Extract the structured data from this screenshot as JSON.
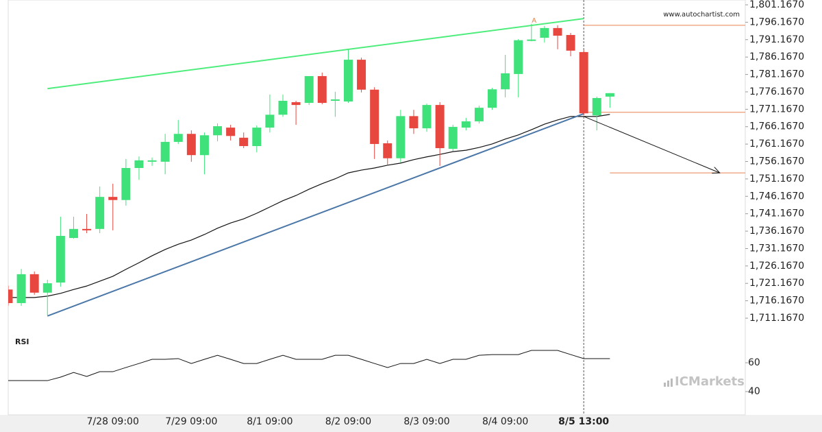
{
  "chart_data": {
    "type": "candlestick",
    "watermark": "www.autochartist.com",
    "logo": "ICMarkets",
    "indicator_label": "RSI",
    "categories": [
      null,
      null,
      null,
      null,
      null,
      null,
      null,
      null,
      "7/28 09:00",
      null,
      null,
      null,
      null,
      null,
      "7/29 09:00",
      null,
      null,
      null,
      null,
      null,
      "8/1 09:00",
      null,
      null,
      null,
      null,
      null,
      "8/2 09:00",
      null,
      null,
      null,
      null,
      null,
      "8/3 09:00",
      null,
      null,
      null,
      null,
      null,
      "8/4 09:00",
      null,
      null,
      null,
      null,
      null,
      "8/5 13:00",
      null,
      null
    ],
    "open": [
      1719.4,
      1715.5,
      1723.8,
      1718.5,
      1721.4,
      1734.2,
      1736.8,
      1736.8,
      1746.0,
      1745.1,
      1754.3,
      1756.1,
      1756.1,
      1761.8,
      1764.1,
      1758.0,
      1763.7,
      1765.9,
      1763.0,
      1760.6,
      1765.9,
      1769.6,
      1773.2,
      1773.0,
      1780.7,
      1773.6,
      1773.4,
      1785.4,
      1776.8,
      1761.4,
      1757.1,
      1769.2,
      1765.7,
      1772.4,
      1759.8,
      1765.9,
      1767.7,
      1771.6,
      1776.9,
      1781.3,
      1790.8,
      1791.7,
      1794.5,
      1792.5,
      1787.6,
      1769.4,
      1774.8
    ],
    "high": [
      1720.5,
      1725.3,
      1724.6,
      1722.2,
      1740.3,
      1740.3,
      1741.1,
      1749.0,
      1749.8,
      1756.9,
      1757.6,
      1757.3,
      1764.1,
      1768.1,
      1765.1,
      1764.5,
      1767.1,
      1766.7,
      1764.5,
      1766.5,
      1775.4,
      1775.4,
      1773.6,
      1780.7,
      1781.7,
      1776.2,
      1788.4,
      1786.0,
      1777.5,
      1762.2,
      1771.0,
      1771.0,
      1772.8,
      1773.2,
      1766.7,
      1768.7,
      1772.2,
      1777.3,
      1786.8,
      1791.3,
      1795.7,
      1795.1,
      1795.3,
      1793.1,
      1788.2,
      1774.8,
      1775.8
    ],
    "low": [
      1714.8,
      1714.7,
      1717.9,
      1711.9,
      1720.2,
      1734.0,
      1735.6,
      1735.6,
      1736.4,
      1743.5,
      1750.9,
      1754.9,
      1752.5,
      1761.2,
      1756.1,
      1752.5,
      1762.0,
      1762.2,
      1760.0,
      1758.8,
      1764.5,
      1769.0,
      1766.7,
      1772.4,
      1772.6,
      1769.0,
      1773.0,
      1776.0,
      1756.9,
      1755.3,
      1755.9,
      1764.1,
      1764.7,
      1754.9,
      1759.2,
      1765.1,
      1767.1,
      1771.0,
      1774.6,
      1774.6,
      1790.7,
      1790.3,
      1788.4,
      1786.4,
      1769.4,
      1765.1,
      1771.6
    ],
    "close": [
      1715.5,
      1723.8,
      1718.5,
      1721.2,
      1734.8,
      1736.8,
      1736.4,
      1746.0,
      1745.1,
      1754.3,
      1756.5,
      1756.5,
      1761.8,
      1764.1,
      1758.0,
      1763.7,
      1766.3,
      1763.5,
      1760.6,
      1765.9,
      1769.6,
      1773.6,
      1772.4,
      1780.7,
      1773.0,
      1774.0,
      1785.4,
      1776.8,
      1761.2,
      1757.1,
      1769.2,
      1765.7,
      1772.4,
      1760.0,
      1766.1,
      1767.7,
      1771.6,
      1776.9,
      1781.5,
      1791.0,
      1791.2,
      1794.5,
      1792.3,
      1788.0,
      1770.0,
      1774.4,
      1775.8
    ],
    "up_color": "#3fe27a",
    "down_color": "#e8473f",
    "moving_average": {
      "color": "#111111",
      "values": [
        1717.1,
        1717.1,
        1717.1,
        1717.5,
        1718.3,
        1719.4,
        1720.4,
        1721.8,
        1723.2,
        1725.2,
        1727.1,
        1729.1,
        1730.9,
        1732.4,
        1733.6,
        1735.2,
        1737.0,
        1738.5,
        1739.7,
        1741.3,
        1743.1,
        1744.9,
        1746.4,
        1748.2,
        1749.8,
        1751.2,
        1752.9,
        1753.7,
        1754.3,
        1755.1,
        1755.7,
        1756.7,
        1757.5,
        1758.2,
        1759.0,
        1759.4,
        1760.2,
        1761.2,
        1762.6,
        1763.8,
        1765.3,
        1766.9,
        1768.1,
        1769.1,
        1769.1,
        1769.1,
        1769.7
      ]
    },
    "trendlines": [
      {
        "color": "#4ded7c",
        "x": [
          3,
          44
        ],
        "values": [
          1777.1,
          1797.2
        ]
      },
      {
        "color": "#4a76a8",
        "x": [
          3,
          44
        ],
        "values": [
          1711.8,
          1769.9
        ]
      }
    ],
    "levels": [
      {
        "color": "#e8834f",
        "from": 44,
        "value": 1795.3
      },
      {
        "color": "#e8834f",
        "from": 44,
        "value": 1770.3
      },
      {
        "color": "#e8834f",
        "from": 46,
        "value": 1752.9
      }
    ],
    "projection": {
      "color": "#111111",
      "x": [
        44,
        54.4
      ],
      "values": [
        1769.1,
        1752.9
      ]
    },
    "pattern_label": {
      "text": "A",
      "x": 40.2,
      "value": 1796.6,
      "color": "#e8834f"
    },
    "vline_index": 44,
    "xlim": [
      0,
      56.35
    ],
    "ylim": [
      1706.05,
      1802.55
    ],
    "yticks": [
      {
        "value": 1801.167,
        "label": "1,801.1670"
      },
      {
        "value": 1796.167,
        "label": "1,796.1670"
      },
      {
        "value": 1791.167,
        "label": "1,791.1670"
      },
      {
        "value": 1786.167,
        "label": "1,786.1670"
      },
      {
        "value": 1781.167,
        "label": "1,781.1670"
      },
      {
        "value": 1776.167,
        "label": "1,776.1670"
      },
      {
        "value": 1771.167,
        "label": "1,771.1670"
      },
      {
        "value": 1766.167,
        "label": "1,766.1670"
      },
      {
        "value": 1761.167,
        "label": "1,761.1670"
      },
      {
        "value": 1756.167,
        "label": "1,756.1670"
      },
      {
        "value": 1751.167,
        "label": "1,751.1670"
      },
      {
        "value": 1746.167,
        "label": "1,746.1670"
      },
      {
        "value": 1741.167,
        "label": "1,741.1670"
      },
      {
        "value": 1736.167,
        "label": "1,736.1670"
      },
      {
        "value": 1731.167,
        "label": "1,731.1670"
      },
      {
        "value": 1726.167,
        "label": "1,726.1670"
      },
      {
        "value": 1721.167,
        "label": "1,721.1670"
      },
      {
        "value": 1716.167,
        "label": "1,716.1670"
      },
      {
        "value": 1711.167,
        "label": "1,711.1670"
      }
    ],
    "rsi": {
      "color": "#111111",
      "values": [
        47.6,
        47.6,
        47.6,
        47.6,
        50.0,
        53.3,
        50.5,
        53.8,
        53.8,
        56.7,
        59.5,
        62.4,
        62.4,
        62.9,
        59.5,
        62.4,
        65.2,
        62.4,
        59.5,
        59.5,
        62.4,
        65.2,
        62.4,
        62.4,
        62.4,
        65.2,
        65.2,
        62.4,
        59.5,
        56.7,
        59.5,
        59.5,
        62.4,
        59.5,
        62.4,
        62.4,
        65.2,
        65.7,
        65.7,
        65.7,
        68.6,
        68.6,
        68.6,
        65.7,
        62.9,
        62.9,
        62.9
      ]
    },
    "rsi_ylim": [
      23.8,
      78.6
    ],
    "rsi_yticks": [
      60,
      40
    ]
  }
}
